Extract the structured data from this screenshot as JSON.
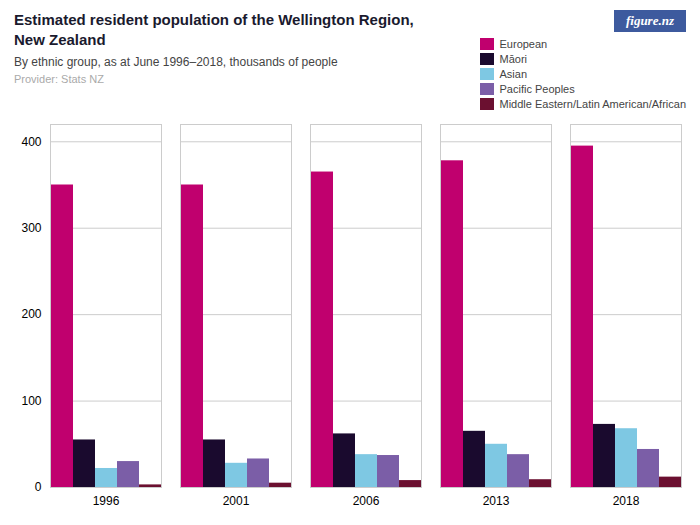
{
  "chart_data": {
    "type": "bar",
    "title": "Estimated resident population of the Wellington Region, New Zealand",
    "subtitle": "By ethnic group, as at June 1996–2018, thousands of people",
    "annotations": [
      "Provider: Stats NZ",
      "figure.nz"
    ],
    "categories": [
      "1996",
      "2001",
      "2006",
      "2013",
      "2018"
    ],
    "series": [
      {
        "name": "European",
        "color": "#c0006e",
        "values": [
          350,
          350,
          365,
          378,
          395
        ]
      },
      {
        "name": "Māori",
        "color": "#1a0a2e",
        "values": [
          55,
          55,
          62,
          65,
          73
        ]
      },
      {
        "name": "Asian",
        "color": "#7ec8e3",
        "values": [
          22,
          28,
          38,
          50,
          68
        ]
      },
      {
        "name": "Pacific Peoples",
        "color": "#7b5ea7",
        "values": [
          30,
          33,
          37,
          38,
          44
        ]
      },
      {
        "name": "Middle Eastern/Latin American/African",
        "color": "#6b1030",
        "values": [
          3,
          5,
          8,
          9,
          12
        ]
      }
    ],
    "ylim": [
      0,
      420
    ],
    "yticks": [
      0,
      100,
      200,
      300,
      400
    ],
    "grid": true,
    "legend": "top"
  }
}
